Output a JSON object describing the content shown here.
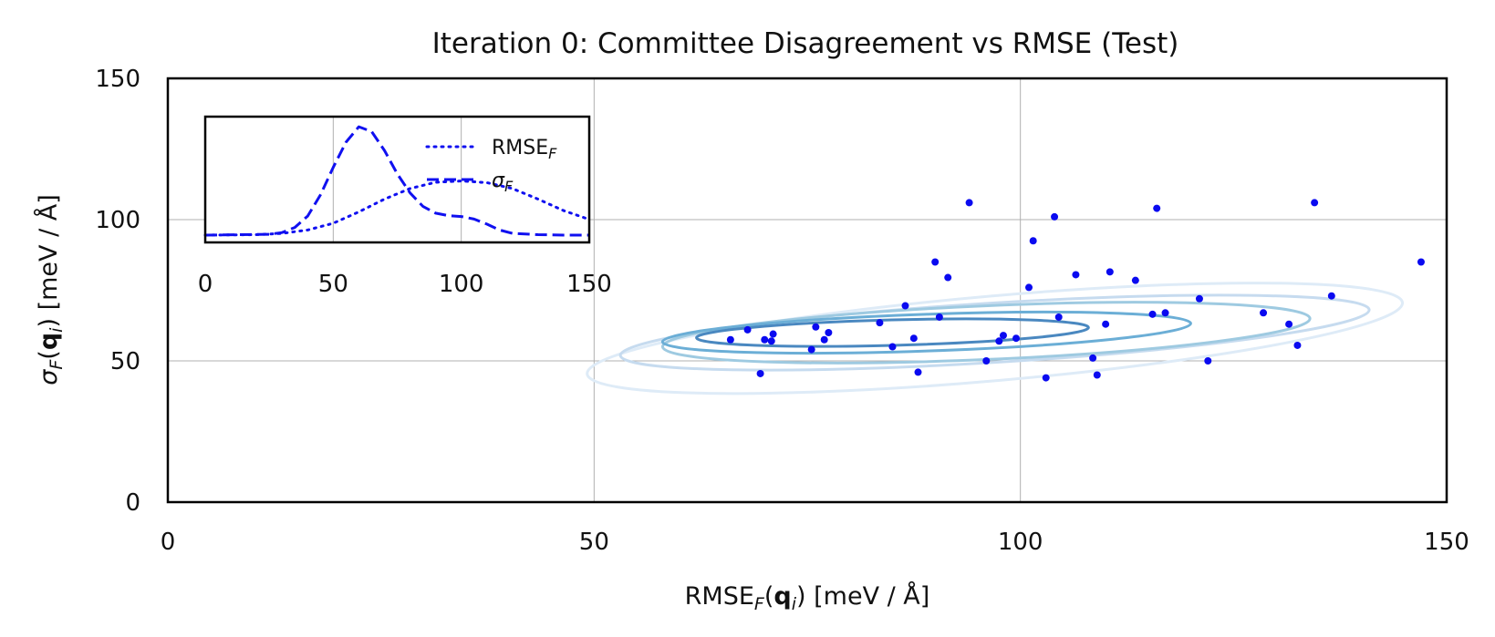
{
  "chart_data": [
    {
      "panel": "main",
      "type": "scatter",
      "title": "Iteration 0: Committee Disagreement vs RMSE (Test)",
      "xlabel_parts": [
        "RMSE",
        "F",
        "(",
        "q",
        "i",
        ") [meV / Å]"
      ],
      "ylabel_parts": [
        "σ",
        "F",
        "(",
        "q",
        "i",
        ") [meV / Å]"
      ],
      "xlim": [
        0,
        150
      ],
      "ylim": [
        0,
        150
      ],
      "xticks": [
        "0",
        "50",
        "100",
        "150"
      ],
      "yticks": [
        "0",
        "50",
        "100",
        "150"
      ],
      "grid": true,
      "points_color": "#0a0af0",
      "points": [
        [
          66,
          57.5
        ],
        [
          68,
          61
        ],
        [
          69.5,
          45.5
        ],
        [
          70,
          57.5
        ],
        [
          70.8,
          57
        ],
        [
          71,
          59.5
        ],
        [
          75.5,
          54
        ],
        [
          76,
          62
        ],
        [
          77,
          57.5
        ],
        [
          77.5,
          60
        ],
        [
          83.5,
          63.5
        ],
        [
          85,
          55
        ],
        [
          86.5,
          69.5
        ],
        [
          87.5,
          58
        ],
        [
          88,
          46
        ],
        [
          90,
          85
        ],
        [
          90.5,
          65.5
        ],
        [
          91.5,
          79.5
        ],
        [
          94,
          106
        ],
        [
          96,
          50
        ],
        [
          97.5,
          57
        ],
        [
          98,
          59
        ],
        [
          99.5,
          58
        ],
        [
          101,
          76
        ],
        [
          101.5,
          92.5
        ],
        [
          103,
          44
        ],
        [
          104,
          101
        ],
        [
          104.5,
          65.5
        ],
        [
          106.5,
          80.5
        ],
        [
          108.5,
          51
        ],
        [
          109,
          45
        ],
        [
          110,
          63
        ],
        [
          110.5,
          81.5
        ],
        [
          113.5,
          78.5
        ],
        [
          115.5,
          66.5
        ],
        [
          116,
          104
        ],
        [
          117,
          67
        ],
        [
          121,
          72
        ],
        [
          122,
          50
        ],
        [
          128.5,
          67
        ],
        [
          131.5,
          63
        ],
        [
          132.5,
          55.5
        ],
        [
          134.5,
          106
        ],
        [
          136.5,
          73
        ],
        [
          147,
          85
        ]
      ],
      "contours": [
        {
          "level": 1,
          "color": "#deebf7",
          "cx": 97,
          "cy": 58,
          "rx": 48,
          "ry": 15,
          "rot": 5
        },
        {
          "level": 2,
          "color": "#c6dbef",
          "cx": 97,
          "cy": 60,
          "rx": 44,
          "ry": 10.5,
          "rot": 3.5
        },
        {
          "level": 3,
          "color": "#9ecae1",
          "cx": 96,
          "cy": 60,
          "rx": 38,
          "ry": 9.5,
          "rot": 2.5
        },
        {
          "level": 4,
          "color": "#6baed6",
          "cx": 89,
          "cy": 60,
          "rx": 31,
          "ry": 6.5,
          "rot": 2
        },
        {
          "level": 5,
          "color": "#4a88c0",
          "cx": 85,
          "cy": 60,
          "rx": 23,
          "ry": 4.5,
          "rot": 1.5
        }
      ]
    },
    {
      "panel": "inset",
      "type": "line",
      "xlim": [
        0,
        150
      ],
      "xticks": [
        "0",
        "50",
        "100",
        "150"
      ],
      "ylim": [
        0,
        0.028
      ],
      "line_color": "#1010f0",
      "series": [
        {
          "name": "RMSE",
          "name_sub": "F",
          "style": "dotted",
          "x": [
            0,
            20,
            30,
            40,
            50,
            60,
            70,
            80,
            90,
            100,
            110,
            120,
            130,
            140,
            150
          ],
          "y": [
            0,
            0.0001,
            0.0004,
            0.0012,
            0.0028,
            0.0055,
            0.0085,
            0.011,
            0.0125,
            0.0128,
            0.0124,
            0.011,
            0.0085,
            0.0058,
            0.0037
          ]
        },
        {
          "name": "σ",
          "name_sub": "F",
          "style": "dashed",
          "x": [
            0,
            25,
            30,
            35,
            40,
            45,
            50,
            55,
            60,
            65,
            70,
            75,
            80,
            85,
            90,
            95,
            100,
            105,
            110,
            115,
            120,
            130,
            140,
            150
          ],
          "y": [
            0,
            0.0002,
            0.0006,
            0.0018,
            0.0045,
            0.0095,
            0.016,
            0.022,
            0.0256,
            0.0245,
            0.02,
            0.0145,
            0.01,
            0.0068,
            0.0052,
            0.0046,
            0.0044,
            0.0038,
            0.0026,
            0.0012,
            0.0004,
            0.0001,
            0,
            0
          ]
        }
      ]
    }
  ]
}
